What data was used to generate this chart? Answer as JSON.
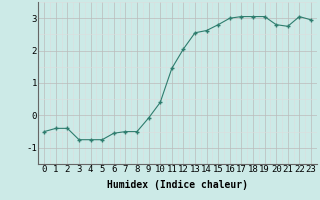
{
  "x": [
    0,
    1,
    2,
    3,
    4,
    5,
    6,
    7,
    8,
    9,
    10,
    11,
    12,
    13,
    14,
    15,
    16,
    17,
    18,
    19,
    20,
    21,
    22,
    23
  ],
  "y": [
    -0.5,
    -0.4,
    -0.4,
    -0.75,
    -0.75,
    -0.75,
    -0.55,
    -0.5,
    -0.5,
    -0.08,
    0.4,
    1.45,
    2.05,
    2.55,
    2.62,
    2.8,
    3.0,
    3.05,
    3.05,
    3.05,
    2.8,
    2.75,
    3.05,
    2.95
  ],
  "xlabel": "Humidex (Indice chaleur)",
  "ylim": [
    -1.5,
    3.5
  ],
  "xlim": [
    -0.5,
    23.5
  ],
  "yticks": [
    -1,
    0,
    1,
    2,
    3
  ],
  "xticks": [
    0,
    1,
    2,
    3,
    4,
    5,
    6,
    7,
    8,
    9,
    10,
    11,
    12,
    13,
    14,
    15,
    16,
    17,
    18,
    19,
    20,
    21,
    22,
    23
  ],
  "bg_color": "#cceae7",
  "grid_major_color": "#bbbbbb",
  "grid_minor_color": "#dddddd",
  "line_color": "#2e7d6e",
  "marker_color": "#2e7d6e",
  "xlabel_fontsize": 7,
  "tick_fontsize": 6.5
}
